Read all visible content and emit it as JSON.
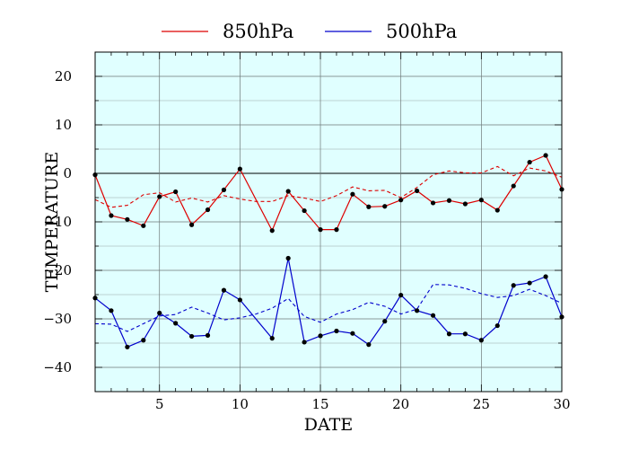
{
  "chart_data": {
    "type": "line",
    "xlabel": "DATE",
    "ylabel": "TEMPERATURE",
    "xlim": [
      1,
      30
    ],
    "ylim": [
      -45,
      25
    ],
    "xticks": [
      5,
      10,
      15,
      20,
      25,
      30
    ],
    "yticks": [
      -40,
      -30,
      -20,
      -10,
      0,
      10,
      20
    ],
    "grid": true,
    "background": "#e0ffff",
    "legend_position": "top",
    "x": [
      1,
      2,
      3,
      4,
      5,
      6,
      7,
      8,
      9,
      10,
      11,
      12,
      13,
      14,
      15,
      16,
      17,
      18,
      19,
      20,
      21,
      22,
      23,
      24,
      25,
      26,
      27,
      28,
      29,
      30
    ],
    "series": [
      {
        "name": "850hPa",
        "color": "#dd0000",
        "style": "solid",
        "markers": true,
        "x": [
          1,
          2,
          3,
          4,
          5,
          6,
          7,
          8,
          9,
          10,
          12,
          13,
          14,
          15,
          16,
          17,
          18,
          19,
          20,
          21,
          22,
          23,
          24,
          25,
          26,
          27,
          28,
          29,
          30
        ],
        "values": [
          -0.3,
          -8.7,
          -9.5,
          -10.8,
          -4.8,
          -3.8,
          -10.6,
          -7.5,
          -3.4,
          0.9,
          -11.8,
          -3.7,
          -7.7,
          -11.6,
          -11.6,
          -4.3,
          -6.9,
          -6.8,
          -5.5,
          -3.6,
          -6.1,
          -5.6,
          -6.3,
          -5.5,
          -7.6,
          -2.6,
          2.3,
          3.7,
          -3.3
        ]
      },
      {
        "name": "500hPa",
        "color": "#0000cc",
        "style": "solid",
        "markers": true,
        "x": [
          1,
          2,
          3,
          4,
          5,
          6,
          7,
          8,
          9,
          10,
          12,
          13,
          14,
          15,
          16,
          17,
          18,
          19,
          20,
          21,
          22,
          23,
          24,
          25,
          26,
          27,
          28,
          29,
          30
        ],
        "values": [
          -25.7,
          -28.3,
          -35.8,
          -34.4,
          -28.8,
          -30.9,
          -33.6,
          -33.4,
          -24.1,
          -26.1,
          -34,
          -17.5,
          -34.8,
          -33.5,
          -32.5,
          -33,
          -35.3,
          -30.5,
          -25.1,
          -28.3,
          -29.3,
          -33.1,
          -33.1,
          -34.4,
          -31.4,
          -23.1,
          -22.6,
          -21.3,
          -29.6
        ]
      },
      {
        "name": "",
        "color": "#dd0000",
        "style": "dashed",
        "markers": false,
        "values": [
          -5.4,
          -7,
          -6.6,
          -4.4,
          -4,
          -5.9,
          -5.1,
          -5.9,
          -4.6,
          -5.3,
          -5.8,
          -5.8,
          -4.6,
          -5.1,
          -5.8,
          -4.6,
          -2.8,
          -3.6,
          -3.5,
          -5,
          -2.9,
          -0.3,
          0.5,
          0.1,
          0.1,
          1.4,
          -0.5,
          1.1,
          0.5,
          -0.8
        ]
      },
      {
        "name": "",
        "color": "#0000cc",
        "style": "dashed",
        "markers": false,
        "values": [
          -31,
          -31.1,
          -32.6,
          -31,
          -29.4,
          -29.1,
          -27.6,
          -28.8,
          -30.2,
          -29.8,
          -29,
          -27.8,
          -25.8,
          -29.5,
          -30.7,
          -29,
          -28.1,
          -26.6,
          -27.4,
          -29,
          -28,
          -22.9,
          -23,
          -23.7,
          -24.8,
          -25.6,
          -25.2,
          -23.9,
          -25.2,
          -26.8
        ]
      }
    ]
  }
}
